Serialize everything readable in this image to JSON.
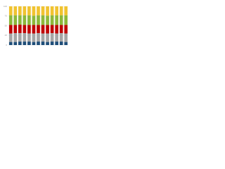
{
  "chart_data": {
    "type": "stacked-bar",
    "categories": [
      null,
      null,
      null,
      null,
      null,
      null,
      null,
      null,
      null,
      null,
      null,
      null,
      null
    ],
    "ylim": [
      0,
      100
    ],
    "yticks": [
      0,
      25,
      50,
      75,
      100
    ],
    "grid": true,
    "series": [
      {
        "color": "#1f4e79",
        "values": [
          8,
          8,
          9,
          9,
          9,
          8,
          9,
          9,
          8,
          9,
          9,
          9,
          8
        ]
      },
      {
        "color": "#a5a5a5",
        "values": [
          22,
          23,
          22,
          22,
          21,
          22,
          22,
          21,
          22,
          22,
          21,
          22,
          22
        ]
      },
      {
        "color": "#c00000",
        "values": [
          22,
          21,
          22,
          21,
          22,
          22,
          21,
          22,
          22,
          21,
          22,
          21,
          22
        ]
      },
      {
        "color": "#8cb83a",
        "values": [
          25,
          25,
          24,
          25,
          25,
          24,
          25,
          25,
          24,
          25,
          25,
          25,
          25
        ]
      },
      {
        "color": "#f0c330",
        "values": [
          23,
          23,
          23,
          23,
          23,
          24,
          23,
          23,
          24,
          23,
          23,
          23,
          23
        ]
      }
    ]
  }
}
